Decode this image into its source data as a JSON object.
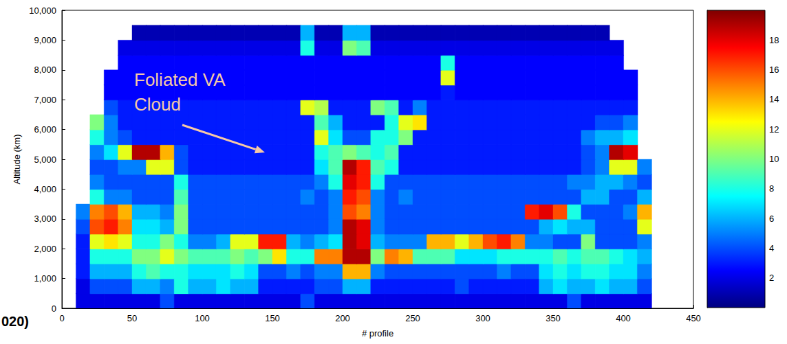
{
  "chart_data": {
    "type": "heatmap",
    "x_label": "# profile",
    "y_label": "Altitude (km)",
    "xlim": [
      0,
      450
    ],
    "ylim": [
      0,
      10000
    ],
    "xticks": [
      0,
      50,
      100,
      150,
      200,
      250,
      300,
      350,
      400,
      450
    ],
    "yticks": [
      0,
      1000,
      2000,
      3000,
      4000,
      5000,
      6000,
      7000,
      8000,
      9000,
      10000
    ],
    "x_bins": [
      0,
      10,
      20,
      30,
      40,
      50,
      60,
      70,
      80,
      90,
      100,
      110,
      120,
      130,
      140,
      150,
      160,
      170,
      180,
      190,
      200,
      210,
      220,
      230,
      240,
      250,
      260,
      270,
      280,
      290,
      300,
      310,
      320,
      330,
      340,
      350,
      360,
      370,
      380,
      390,
      400,
      410,
      420,
      430,
      440,
      450
    ],
    "y_bins": [
      0,
      500,
      1000,
      1500,
      2000,
      2500,
      3000,
      3500,
      4000,
      4500,
      5000,
      5500,
      6000,
      6500,
      7000,
      7500,
      8000,
      8500,
      9000,
      9500,
      10000
    ],
    "values": [
      [
        null,
        2,
        2,
        2,
        2,
        2,
        2,
        4,
        2,
        2,
        2,
        2,
        2,
        2,
        2,
        2,
        2,
        4,
        2,
        2,
        2,
        2,
        2,
        2,
        2,
        2,
        2,
        2,
        2,
        2,
        2,
        2,
        2,
        2,
        2,
        2,
        4,
        2,
        2,
        2,
        2,
        2,
        null,
        null,
        null
      ],
      [
        null,
        2,
        4,
        4,
        4,
        6,
        6,
        5,
        8,
        6,
        6,
        7,
        6,
        6,
        3,
        3,
        3,
        3,
        4,
        4,
        6,
        6,
        3,
        3,
        3,
        3,
        3,
        3,
        4,
        3,
        3,
        3,
        3,
        3,
        6,
        7,
        6,
        6,
        7,
        6,
        6,
        4,
        null,
        null,
        null
      ],
      [
        null,
        3,
        6,
        6,
        6,
        8,
        9,
        8,
        8,
        7,
        7,
        7,
        8,
        7,
        4,
        4,
        5,
        4,
        5,
        5,
        14,
        14,
        5,
        4,
        4,
        4,
        4,
        4,
        4,
        4,
        4,
        5,
        4,
        4,
        7,
        8,
        7,
        8,
        8,
        7,
        7,
        5,
        null,
        null,
        null
      ],
      [
        null,
        3,
        8,
        8,
        8,
        10,
        10,
        12,
        10,
        9,
        9,
        9,
        10,
        9,
        10,
        13,
        8,
        8,
        15,
        15,
        19,
        19,
        10,
        15,
        14,
        9,
        9,
        9,
        7,
        7,
        7,
        8,
        8,
        8,
        8,
        9,
        8,
        9,
        9,
        8,
        7,
        6,
        null,
        null,
        null
      ],
      [
        null,
        3,
        12,
        13,
        12,
        8,
        8,
        10,
        8,
        5,
        5,
        6,
        12,
        12,
        17,
        17,
        6,
        5,
        6,
        7,
        19,
        18,
        6,
        5,
        5,
        5,
        14,
        14,
        12,
        14,
        16,
        17,
        15,
        5,
        5,
        4,
        4,
        10,
        4,
        4,
        4,
        5,
        null,
        null,
        null
      ],
      [
        null,
        4,
        16,
        17,
        15,
        7,
        7,
        6,
        10,
        4,
        4,
        4,
        4,
        4,
        4,
        4,
        4,
        4,
        4,
        5,
        19,
        18,
        5,
        4,
        4,
        4,
        4,
        4,
        4,
        4,
        4,
        4,
        4,
        4,
        6,
        7,
        6,
        6,
        4,
        4,
        4,
        12,
        null,
        null,
        null
      ],
      [
        null,
        5,
        15,
        16,
        14,
        6,
        6,
        5,
        10,
        4,
        4,
        4,
        4,
        4,
        4,
        4,
        4,
        4,
        4,
        5,
        16,
        15,
        5,
        4,
        4,
        4,
        4,
        4,
        4,
        4,
        4,
        4,
        4,
        17,
        18,
        16,
        8,
        4,
        4,
        4,
        5,
        14,
        null,
        null,
        null
      ],
      [
        null,
        null,
        8,
        5,
        5,
        4,
        4,
        4,
        9,
        4,
        4,
        4,
        4,
        4,
        4,
        4,
        4,
        5,
        4,
        5,
        17,
        16,
        5,
        4,
        5,
        4,
        4,
        4,
        4,
        4,
        4,
        4,
        4,
        4,
        4,
        4,
        4,
        6,
        6,
        4,
        4,
        6,
        null,
        null,
        null
      ],
      [
        null,
        null,
        5,
        4,
        4,
        4,
        4,
        4,
        8,
        4,
        4,
        4,
        4,
        4,
        4,
        4,
        4,
        4,
        5,
        8,
        18,
        17,
        8,
        4,
        4,
        4,
        4,
        4,
        4,
        4,
        4,
        4,
        4,
        4,
        4,
        4,
        5,
        5,
        6,
        6,
        5,
        4,
        null,
        null,
        null
      ],
      [
        null,
        null,
        4,
        4,
        5,
        5,
        12,
        12,
        4,
        3,
        3,
        3,
        3,
        3,
        3,
        3,
        3,
        3,
        7,
        9,
        19,
        17,
        9,
        8,
        3,
        3,
        3,
        3,
        3,
        3,
        3,
        3,
        3,
        3,
        3,
        3,
        3,
        4,
        5,
        12,
        12,
        5,
        null,
        null,
        null
      ],
      [
        null,
        null,
        5,
        7,
        12,
        19,
        19,
        14,
        4,
        3,
        3,
        3,
        3,
        3,
        3,
        3,
        3,
        3,
        8,
        9,
        10,
        9,
        8,
        9,
        3,
        3,
        3,
        3,
        3,
        3,
        3,
        3,
        3,
        3,
        3,
        3,
        3,
        4,
        5,
        19,
        18,
        null,
        null,
        null,
        null
      ],
      [
        null,
        null,
        8,
        5,
        4,
        3,
        3,
        3,
        3,
        3,
        3,
        3,
        3,
        3,
        3,
        3,
        3,
        3,
        12,
        7,
        4,
        4,
        8,
        8,
        10,
        3,
        3,
        3,
        3,
        3,
        3,
        3,
        3,
        3,
        3,
        3,
        3,
        5,
        6,
        6,
        7,
        null,
        null,
        null,
        null
      ],
      [
        null,
        null,
        10,
        5,
        3,
        3,
        3,
        3,
        3,
        3,
        3,
        3,
        3,
        3,
        3,
        3,
        3,
        3,
        9,
        6,
        3,
        3,
        3,
        8,
        12,
        13,
        3,
        3,
        3,
        3,
        3,
        3,
        3,
        3,
        3,
        3,
        3,
        3,
        4,
        4,
        5,
        null,
        null,
        null,
        null
      ],
      [
        null,
        null,
        null,
        4,
        3,
        3,
        3,
        3,
        3,
        3,
        3,
        3,
        3,
        3,
        3,
        3,
        3,
        12,
        11,
        3,
        3,
        3,
        10,
        9,
        3,
        5,
        3,
        3,
        3,
        3,
        3,
        3,
        3,
        3,
        3,
        3,
        3,
        3,
        3,
        3,
        3,
        null,
        null,
        null,
        null
      ],
      [
        null,
        null,
        null,
        2.5,
        2.5,
        2.5,
        2.5,
        2.5,
        2.5,
        2.5,
        2.5,
        2.5,
        2.5,
        2.5,
        2.5,
        2.5,
        2.5,
        2.5,
        2.5,
        2.5,
        2.5,
        2.5,
        2.5,
        2.5,
        2.5,
        2.5,
        2.5,
        3,
        2.5,
        2.5,
        2.5,
        2.5,
        2.5,
        2.5,
        2.5,
        2.5,
        2.5,
        2.5,
        2.5,
        2.5,
        2.5,
        null,
        null,
        null,
        null
      ],
      [
        null,
        null,
        null,
        2.5,
        2.5,
        2.5,
        2.5,
        2.5,
        2.5,
        2.5,
        2.5,
        2.5,
        2.5,
        2.5,
        2.5,
        2.5,
        2.5,
        2.5,
        2.5,
        2.5,
        2.5,
        2.5,
        2.5,
        2.5,
        2.5,
        2.5,
        2.5,
        12,
        2.5,
        2.5,
        2.5,
        2.5,
        2.5,
        2.5,
        2.5,
        2.5,
        2.5,
        2.5,
        2.5,
        2.5,
        2.5,
        null,
        null,
        null,
        null
      ],
      [
        null,
        null,
        null,
        null,
        2.5,
        2.5,
        2.5,
        2.5,
        2.5,
        2.5,
        2.5,
        2.5,
        2.5,
        2.5,
        2.5,
        2.5,
        2.5,
        2.5,
        2.5,
        2.5,
        2.5,
        2.5,
        2.5,
        2.5,
        2.5,
        2.5,
        2.5,
        8,
        2.5,
        2.5,
        2.5,
        2.5,
        2.5,
        2.5,
        2.5,
        2.5,
        2.5,
        2.5,
        2.5,
        2.5,
        null,
        null,
        null,
        null,
        null
      ],
      [
        null,
        null,
        null,
        null,
        2,
        2,
        2,
        2,
        2,
        2,
        2,
        2,
        2,
        2,
        2,
        2,
        2,
        8,
        2,
        2,
        10,
        9,
        2,
        2,
        2,
        2,
        2,
        2,
        2,
        2,
        2,
        2,
        2,
        2,
        2,
        2,
        2,
        2,
        2,
        2,
        null,
        null,
        null,
        null,
        null
      ],
      [
        null,
        null,
        null,
        null,
        null,
        1,
        1,
        1,
        1,
        1,
        1,
        1,
        1,
        1,
        1,
        1,
        1,
        6,
        1,
        1,
        6,
        6,
        1,
        1,
        1,
        1,
        1,
        1,
        1,
        1,
        1,
        1,
        1,
        1,
        1,
        1,
        1,
        1,
        1,
        null,
        null,
        null,
        null,
        null,
        null
      ],
      [
        null,
        null,
        null,
        null,
        null,
        null,
        null,
        null,
        null,
        null,
        null,
        null,
        null,
        null,
        null,
        null,
        null,
        null,
        null,
        null,
        null,
        null,
        null,
        null,
        null,
        null,
        null,
        null,
        null,
        null,
        null,
        null,
        null,
        null,
        null,
        null,
        null,
        null,
        null,
        null,
        null,
        null,
        null,
        null,
        null
      ]
    ],
    "colorbar": {
      "range": [
        0,
        20
      ],
      "ticks": [
        2,
        4,
        6,
        8,
        10,
        12,
        14,
        16,
        18
      ]
    },
    "annotations": [
      "Foliated VA Cloud",
      "020)"
    ]
  }
}
